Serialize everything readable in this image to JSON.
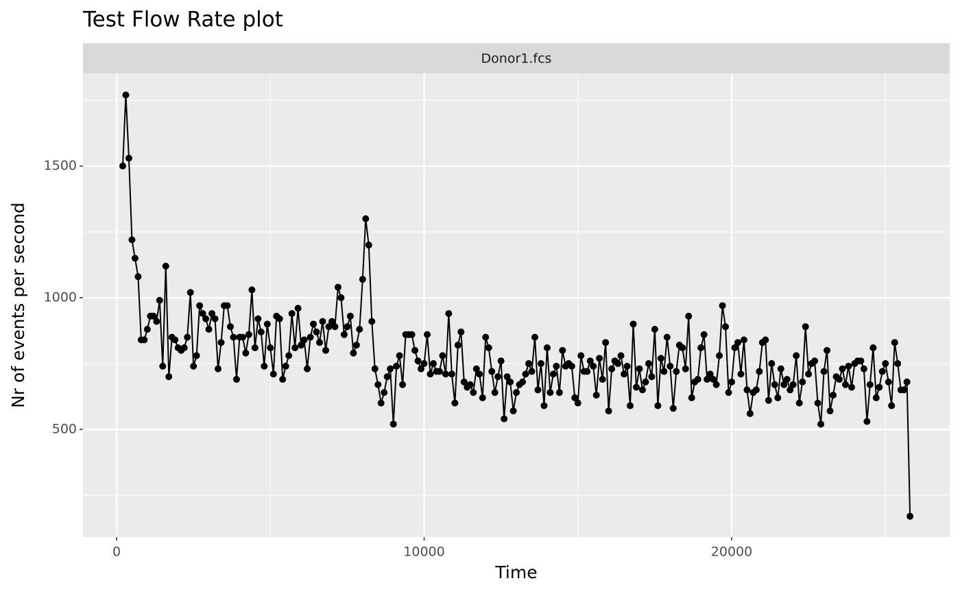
{
  "chart_data": {
    "type": "line",
    "title": "Test Flow Rate plot",
    "facet_label": "Donor1.fcs",
    "x_label": "Time",
    "y_label": "Nr of events per second",
    "xlim": [
      -1093,
      27090
    ],
    "ylim": [
      91,
      1852
    ],
    "xticks": [
      0,
      10000,
      20000
    ],
    "yticks": [
      500,
      1000,
      1500
    ],
    "grid": true,
    "color": "#000000",
    "markers": true,
    "x": [
      200,
      300,
      400,
      500,
      600,
      700,
      800,
      900,
      1000,
      1100,
      1200,
      1300,
      1400,
      1500,
      1600,
      1700,
      1800,
      1900,
      2000,
      2100,
      2200,
      2300,
      2400,
      2500,
      2600,
      2700,
      2800,
      2900,
      3000,
      3100,
      3200,
      3300,
      3400,
      3500,
      3600,
      3700,
      3800,
      3900,
      4000,
      4100,
      4200,
      4300,
      4400,
      4500,
      4600,
      4700,
      4800,
      4900,
      5000,
      5100,
      5200,
      5300,
      5400,
      5500,
      5600,
      5700,
      5800,
      5900,
      6000,
      6100,
      6200,
      6300,
      6400,
      6500,
      6600,
      6700,
      6800,
      6900,
      7000,
      7100,
      7200,
      7300,
      7400,
      7500,
      7600,
      7700,
      7800,
      7900,
      8000,
      8100,
      8200,
      8300,
      8400,
      8500,
      8600,
      8700,
      8800,
      8900,
      9000,
      9100,
      9200,
      9300,
      9400,
      9500,
      9600,
      9700,
      9800,
      9900,
      10000,
      10100,
      10200,
      10300,
      10400,
      10500,
      10600,
      10700,
      10800,
      10900,
      11000,
      11100,
      11200,
      11300,
      11400,
      11500,
      11600,
      11700,
      11800,
      11900,
      12000,
      12100,
      12200,
      12300,
      12400,
      12500,
      12600,
      12700,
      12800,
      12900,
      13000,
      13100,
      13200,
      13300,
      13400,
      13500,
      13600,
      13700,
      13800,
      13900,
      14000,
      14100,
      14200,
      14300,
      14400,
      14500,
      14600,
      14700,
      14800,
      14900,
      15000,
      15100,
      15200,
      15300,
      15400,
      15500,
      15600,
      15700,
      15800,
      15900,
      16000,
      16100,
      16200,
      16300,
      16400,
      16500,
      16600,
      16700,
      16800,
      16900,
      17000,
      17100,
      17200,
      17300,
      17400,
      17500,
      17600,
      17700,
      17800,
      17900,
      18000,
      18100,
      18200,
      18300,
      18400,
      18500,
      18600,
      18700,
      18800,
      18900,
      19000,
      19100,
      19200,
      19300,
      19400,
      19500,
      19600,
      19700,
      19800,
      19900,
      20000,
      20100,
      20200,
      20300,
      20400,
      20500,
      20600,
      20700,
      20800,
      20900,
      21000,
      21100,
      21200,
      21300,
      21400,
      21500,
      21600,
      21700,
      21800,
      21900,
      22000,
      22100,
      22200,
      22300,
      22400,
      22500,
      22600,
      22700,
      22800,
      22900,
      23000,
      23100,
      23200,
      23300,
      23400,
      23500,
      23600,
      23700,
      23800,
      23900,
      24000,
      24100,
      24200,
      24300,
      24400,
      24500,
      24600,
      24700,
      24800,
      24900,
      25000,
      25100,
      25200,
      25300,
      25400,
      25500,
      25600,
      25700,
      25800
    ],
    "values": [
      1500,
      1770,
      1530,
      1220,
      1150,
      1080,
      840,
      840,
      880,
      930,
      930,
      910,
      990,
      740,
      1120,
      700,
      850,
      840,
      810,
      800,
      810,
      850,
      1020,
      740,
      780,
      970,
      940,
      920,
      880,
      940,
      920,
      730,
      830,
      970,
      970,
      890,
      850,
      690,
      850,
      850,
      790,
      860,
      1030,
      810,
      920,
      870,
      740,
      900,
      810,
      710,
      930,
      920,
      690,
      740,
      780,
      940,
      810,
      960,
      820,
      840,
      730,
      850,
      900,
      870,
      830,
      910,
      800,
      890,
      910,
      890,
      1040,
      1000,
      860,
      890,
      930,
      790,
      820,
      880,
      1070,
      1300,
      1200,
      910,
      730,
      670,
      600,
      640,
      700,
      730,
      520,
      740,
      780,
      670,
      860,
      860,
      860,
      800,
      760,
      730,
      750,
      860,
      710,
      750,
      720,
      720,
      780,
      710,
      940,
      710,
      600,
      820,
      870,
      680,
      660,
      670,
      640,
      730,
      710,
      620,
      850,
      810,
      720,
      640,
      700,
      760,
      540,
      700,
      680,
      570,
      640,
      670,
      680,
      710,
      750,
      720,
      850,
      650,
      750,
      590,
      810,
      640,
      710,
      740,
      640,
      800,
      740,
      750,
      740,
      620,
      600,
      780,
      720,
      720,
      760,
      740,
      630,
      770,
      690,
      830,
      570,
      730,
      760,
      750,
      780,
      710,
      740,
      590,
      900,
      660,
      730,
      650,
      680,
      750,
      700,
      880,
      590,
      770,
      720,
      850,
      740,
      580,
      720,
      820,
      810,
      730,
      930,
      620,
      680,
      690,
      810,
      860,
      690,
      710,
      690,
      670,
      780,
      970,
      890,
      640,
      680,
      810,
      830,
      710,
      840,
      650,
      560,
      640,
      650,
      720,
      830,
      840,
      610,
      750,
      670,
      620,
      730,
      670,
      690,
      650,
      670,
      780,
      600,
      680,
      890,
      710,
      750,
      760,
      600,
      520,
      720,
      800,
      570,
      630,
      700,
      690,
      730,
      670,
      740,
      660,
      750,
      760,
      760,
      730,
      530,
      670,
      810,
      620,
      660,
      720,
      750,
      680,
      590,
      830,
      750,
      650,
      650,
      680,
      170
    ]
  }
}
